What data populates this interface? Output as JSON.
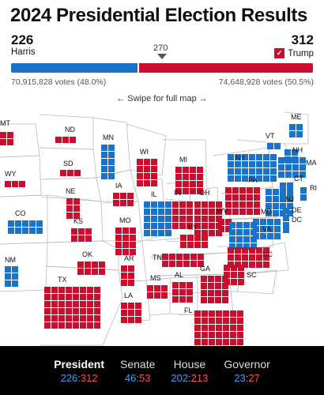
{
  "title": "2024 Presidential Election Results",
  "harris": {
    "electoral": "226",
    "name": "Harris",
    "votes": "70,915,828 votes (48.0%)",
    "bar_fraction": 0.42
  },
  "trump": {
    "electoral": "312",
    "name": "Trump",
    "votes": "74,648,928 votes (50.5%)"
  },
  "threshold": "270",
  "swipe_hint": "← Swipe for full map →",
  "colors": {
    "dem": "#1a73c6",
    "rep": "#c8102e"
  },
  "map": {
    "labels": [
      "MT",
      "ND",
      "MN",
      "WI",
      "MI",
      "SD",
      "WY",
      "IA",
      "NE",
      "IL",
      "IN",
      "OH",
      "PA",
      "NY",
      "VT",
      "ME",
      "NH",
      "MA",
      "CT",
      "RI",
      "NJ",
      "DE",
      "MD",
      "DC",
      "CO",
      "KS",
      "MO",
      "KY",
      "WV",
      "VA",
      "OK",
      "AR",
      "TN",
      "NC",
      "NM",
      "TX",
      "MS",
      "AL",
      "GA",
      "SC",
      "LA",
      "FL"
    ]
  },
  "footer": {
    "tabs": [
      {
        "label": "President",
        "dem": "226",
        "rep": "312"
      },
      {
        "label": "Senate",
        "dem": "46",
        "rep": "53"
      },
      {
        "label": "House",
        "dem": "202",
        "rep": "213"
      },
      {
        "label": "Governor",
        "dem": "23",
        "rep": "27"
      }
    ]
  }
}
